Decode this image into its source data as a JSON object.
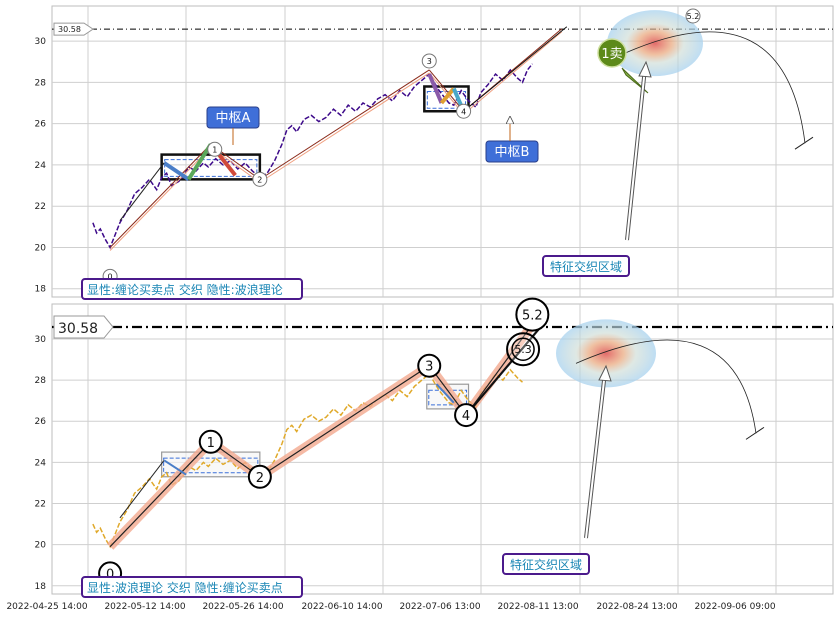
{
  "x_ticks": [
    "2022-04-25 14:00",
    "2022-05-12 14:00",
    "2022-05-26 14:00",
    "2022-06-10 14:00",
    "2022-07-06 13:00",
    "2022-08-11 13:00",
    "2022-08-24 13:00",
    "2022-09-06 09:00"
  ],
  "colors": {
    "price_top": "#3d0a8a",
    "price_bottom": "#e0a92a",
    "zhongshu_box": "#111111",
    "label_box_fill": "#3f6fd8",
    "legend_border": "#4b1a8c",
    "legend_text": "#1a86b5",
    "sell_marker": "#5d8a1a",
    "wave_glow": "#f2a98f"
  },
  "chart_data": [
    {
      "type": "line",
      "panel": "top",
      "y_ticks": [
        18,
        20,
        22,
        24,
        26,
        28,
        30
      ],
      "ylim": [
        17.6,
        31.7
      ],
      "reference_line": {
        "value": 30.58,
        "label": "30.58"
      },
      "price_series": [
        {
          "x": 0.2,
          "y": 21.2
        },
        {
          "x": 0.35,
          "y": 20.7
        },
        {
          "x": 0.5,
          "y": 20.9
        },
        {
          "x": 0.7,
          "y": 20.4
        },
        {
          "x": 0.9,
          "y": 20.0
        },
        {
          "x": 1.1,
          "y": 20.6
        },
        {
          "x": 1.3,
          "y": 21.2
        },
        {
          "x": 1.6,
          "y": 21.8
        },
        {
          "x": 1.9,
          "y": 22.6
        },
        {
          "x": 2.2,
          "y": 22.9
        },
        {
          "x": 2.5,
          "y": 23.3
        },
        {
          "x": 2.8,
          "y": 22.8
        },
        {
          "x": 3.0,
          "y": 23.4
        },
        {
          "x": 3.2,
          "y": 23.6
        },
        {
          "x": 3.4,
          "y": 23.0
        },
        {
          "x": 3.7,
          "y": 23.2
        },
        {
          "x": 3.9,
          "y": 23.5
        },
        {
          "x": 4.1,
          "y": 23.9
        },
        {
          "x": 4.4,
          "y": 23.7
        },
        {
          "x": 4.7,
          "y": 24.1
        },
        {
          "x": 4.9,
          "y": 23.9
        },
        {
          "x": 5.2,
          "y": 24.3
        },
        {
          "x": 5.5,
          "y": 24.0
        },
        {
          "x": 5.8,
          "y": 24.2
        },
        {
          "x": 6.1,
          "y": 23.8
        },
        {
          "x": 6.4,
          "y": 24.1
        },
        {
          "x": 6.7,
          "y": 23.7
        },
        {
          "x": 7.0,
          "y": 23.4
        },
        {
          "x": 7.3,
          "y": 23.6
        },
        {
          "x": 7.6,
          "y": 24.2
        },
        {
          "x": 7.9,
          "y": 25.0
        },
        {
          "x": 8.1,
          "y": 25.7
        },
        {
          "x": 8.3,
          "y": 25.9
        },
        {
          "x": 8.5,
          "y": 25.6
        },
        {
          "x": 8.8,
          "y": 26.2
        },
        {
          "x": 9.1,
          "y": 26.4
        },
        {
          "x": 9.4,
          "y": 26.1
        },
        {
          "x": 9.7,
          "y": 26.3
        },
        {
          "x": 10.0,
          "y": 26.7
        },
        {
          "x": 10.3,
          "y": 26.4
        },
        {
          "x": 10.6,
          "y": 26.9
        },
        {
          "x": 10.9,
          "y": 26.6
        },
        {
          "x": 11.2,
          "y": 27.0
        },
        {
          "x": 11.5,
          "y": 26.8
        },
        {
          "x": 11.8,
          "y": 27.2
        },
        {
          "x": 12.1,
          "y": 27.4
        },
        {
          "x": 12.4,
          "y": 27.1
        },
        {
          "x": 12.7,
          "y": 27.6
        },
        {
          "x": 13.0,
          "y": 27.3
        },
        {
          "x": 13.3,
          "y": 27.8
        },
        {
          "x": 13.6,
          "y": 28.1
        },
        {
          "x": 13.9,
          "y": 28.4
        },
        {
          "x": 14.1,
          "y": 28.0
        },
        {
          "x": 14.3,
          "y": 27.6
        },
        {
          "x": 14.5,
          "y": 27.3
        },
        {
          "x": 14.7,
          "y": 27.0
        },
        {
          "x": 14.9,
          "y": 26.9
        },
        {
          "x": 15.2,
          "y": 27.6
        },
        {
          "x": 15.5,
          "y": 27.1
        },
        {
          "x": 15.8,
          "y": 26.8
        },
        {
          "x": 16.0,
          "y": 27.5
        },
        {
          "x": 16.3,
          "y": 27.9
        },
        {
          "x": 16.6,
          "y": 28.4
        },
        {
          "x": 16.9,
          "y": 28.1
        },
        {
          "x": 17.2,
          "y": 28.6
        },
        {
          "x": 17.5,
          "y": 28.2
        },
        {
          "x": 17.7,
          "y": 28.0
        },
        {
          "x": 17.9,
          "y": 28.6
        },
        {
          "x": 18.1,
          "y": 28.9
        }
      ],
      "wave_points": [
        {
          "x": 0.9,
          "y": 20.0,
          "label": "0"
        },
        {
          "x": 5.0,
          "y": 25.0,
          "label": "1"
        },
        {
          "x": 7.0,
          "y": 23.3,
          "label": "2"
        },
        {
          "x": 13.9,
          "y": 28.6,
          "label": "3"
        },
        {
          "x": 15.3,
          "y": 26.6,
          "label": "4"
        },
        {
          "x": 19.3,
          "y": 30.6,
          "label": "5.2"
        }
      ],
      "zhongshu": [
        {
          "label": "中枢A",
          "x0": 3.0,
          "x1": 7.0,
          "y0": 23.3,
          "y1": 24.5
        },
        {
          "label": "中枢B",
          "x0": 13.7,
          "x1": 15.5,
          "y0": 26.6,
          "y1": 27.8
        }
      ],
      "sell_point": {
        "label": "1卖",
        "x": 17.8,
        "y": 29.4
      },
      "zone_label": "特征交织区域",
      "legend": "显性:缠论买卖点 交织 隐性:波浪理论"
    },
    {
      "type": "line",
      "panel": "bottom",
      "y_ticks": [
        18,
        20,
        22,
        24,
        26,
        28,
        30
      ],
      "ylim": [
        17.6,
        31.7
      ],
      "reference_line": {
        "value": 30.58,
        "label": "30.58"
      },
      "price_series": [
        {
          "x": 0.2,
          "y": 21.0
        },
        {
          "x": 0.35,
          "y": 20.6
        },
        {
          "x": 0.5,
          "y": 20.8
        },
        {
          "x": 0.7,
          "y": 20.3
        },
        {
          "x": 0.9,
          "y": 19.9
        },
        {
          "x": 1.1,
          "y": 20.5
        },
        {
          "x": 1.3,
          "y": 21.1
        },
        {
          "x": 1.6,
          "y": 21.7
        },
        {
          "x": 1.9,
          "y": 22.5
        },
        {
          "x": 2.2,
          "y": 22.8
        },
        {
          "x": 2.5,
          "y": 23.2
        },
        {
          "x": 2.8,
          "y": 22.7
        },
        {
          "x": 3.0,
          "y": 23.3
        },
        {
          "x": 3.2,
          "y": 23.5
        },
        {
          "x": 3.4,
          "y": 22.9
        },
        {
          "x": 3.7,
          "y": 23.1
        },
        {
          "x": 3.9,
          "y": 23.4
        },
        {
          "x": 4.1,
          "y": 23.8
        },
        {
          "x": 4.4,
          "y": 23.6
        },
        {
          "x": 4.7,
          "y": 24.0
        },
        {
          "x": 4.9,
          "y": 23.8
        },
        {
          "x": 5.2,
          "y": 24.2
        },
        {
          "x": 5.5,
          "y": 23.9
        },
        {
          "x": 5.8,
          "y": 24.1
        },
        {
          "x": 6.1,
          "y": 23.7
        },
        {
          "x": 6.4,
          "y": 24.0
        },
        {
          "x": 6.7,
          "y": 23.6
        },
        {
          "x": 7.0,
          "y": 23.3
        },
        {
          "x": 7.3,
          "y": 23.5
        },
        {
          "x": 7.6,
          "y": 24.1
        },
        {
          "x": 7.9,
          "y": 24.9
        },
        {
          "x": 8.1,
          "y": 25.6
        },
        {
          "x": 8.3,
          "y": 25.8
        },
        {
          "x": 8.5,
          "y": 25.5
        },
        {
          "x": 8.8,
          "y": 26.1
        },
        {
          "x": 9.1,
          "y": 26.3
        },
        {
          "x": 9.4,
          "y": 26.0
        },
        {
          "x": 9.7,
          "y": 26.2
        },
        {
          "x": 10.0,
          "y": 26.6
        },
        {
          "x": 10.3,
          "y": 26.3
        },
        {
          "x": 10.6,
          "y": 26.8
        },
        {
          "x": 10.9,
          "y": 26.5
        },
        {
          "x": 11.2,
          "y": 26.9
        },
        {
          "x": 11.5,
          "y": 26.7
        },
        {
          "x": 11.8,
          "y": 27.1
        },
        {
          "x": 12.1,
          "y": 27.3
        },
        {
          "x": 12.4,
          "y": 27.0
        },
        {
          "x": 12.7,
          "y": 27.5
        },
        {
          "x": 13.0,
          "y": 27.2
        },
        {
          "x": 13.3,
          "y": 27.7
        },
        {
          "x": 13.6,
          "y": 28.0
        },
        {
          "x": 13.9,
          "y": 28.3
        },
        {
          "x": 14.1,
          "y": 27.9
        },
        {
          "x": 14.3,
          "y": 27.5
        },
        {
          "x": 14.5,
          "y": 27.2
        },
        {
          "x": 14.7,
          "y": 26.9
        },
        {
          "x": 14.9,
          "y": 26.8
        },
        {
          "x": 15.2,
          "y": 27.5
        },
        {
          "x": 15.5,
          "y": 27.0
        },
        {
          "x": 15.8,
          "y": 26.7
        },
        {
          "x": 16.0,
          "y": 27.4
        },
        {
          "x": 16.3,
          "y": 27.8
        },
        {
          "x": 16.6,
          "y": 28.3
        },
        {
          "x": 16.9,
          "y": 28.0
        },
        {
          "x": 17.2,
          "y": 28.5
        },
        {
          "x": 17.5,
          "y": 28.1
        },
        {
          "x": 17.7,
          "y": 27.9
        }
      ],
      "wave_points": [
        {
          "x": 0.9,
          "y": 19.9,
          "label": "0"
        },
        {
          "x": 5.0,
          "y": 25.0,
          "label": "1"
        },
        {
          "x": 7.0,
          "y": 23.3,
          "label": "2"
        },
        {
          "x": 13.9,
          "y": 28.7,
          "label": "3"
        },
        {
          "x": 15.4,
          "y": 26.3,
          "label": "4"
        },
        {
          "x": 18.1,
          "y": 30.7,
          "label": "5.2"
        }
      ],
      "zhongshu": [
        {
          "label": "",
          "x0": 3.0,
          "x1": 7.0,
          "y0": 23.3,
          "y1": 24.5
        },
        {
          "label": "",
          "x0": 13.8,
          "x1": 15.5,
          "y0": 26.6,
          "y1": 27.8
        }
      ],
      "wave_markers_extra": [
        {
          "label": "5.3",
          "x": 16.5,
          "y": 29.5
        }
      ],
      "zone_label": "特征交织区域",
      "legend": "显性:波浪理论 交织 隐性:缠论买卖点"
    }
  ]
}
